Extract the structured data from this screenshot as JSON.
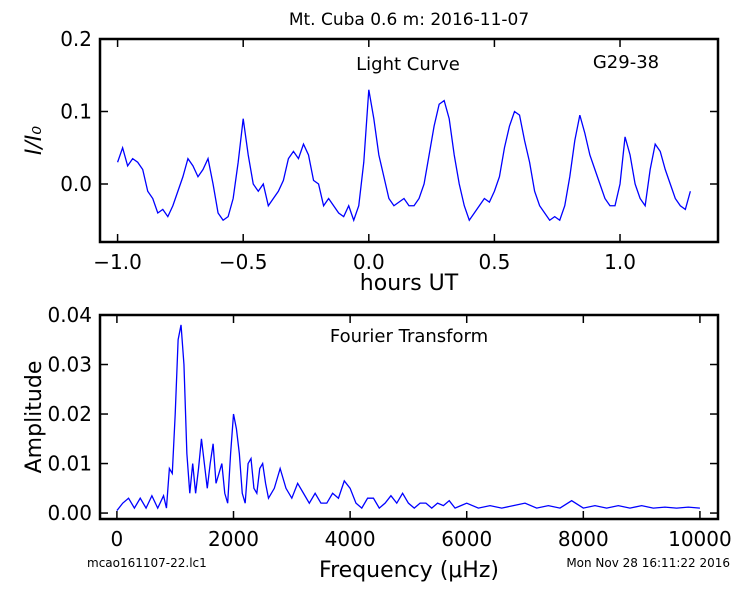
{
  "title": "Mt. Cuba 0.6 m:  2016-11-07",
  "footer_left": "mcao161107-22.lc1",
  "footer_right": "Mon Nov 28 16:11:22 2016",
  "chart_data": [
    {
      "type": "line",
      "annotations": [
        "Light Curve",
        "G29-38"
      ],
      "xlabel": "hours UT",
      "ylabel": "I/I₀",
      "color": "#0000ff",
      "xlim": [
        -1.07,
        1.39
      ],
      "ylim": [
        -0.08,
        0.2
      ],
      "xticks": [
        {
          "value": -1,
          "label": "−1.0"
        },
        {
          "value": -0.5,
          "label": "−0.5"
        },
        {
          "value": 0,
          "label": "0.0"
        },
        0.5,
        {
          "value": 1,
          "label": "1.0"
        }
      ],
      "yticks": [
        {
          "value": 0,
          "label": "0.0"
        },
        0.1,
        0.2
      ],
      "x": [
        -1.0,
        -0.98,
        -0.96,
        -0.94,
        -0.92,
        -0.9,
        -0.88,
        -0.86,
        -0.84,
        -0.82,
        -0.8,
        -0.78,
        -0.76,
        -0.74,
        -0.72,
        -0.7,
        -0.68,
        -0.66,
        -0.64,
        -0.62,
        -0.6,
        -0.58,
        -0.56,
        -0.54,
        -0.52,
        -0.5,
        -0.48,
        -0.46,
        -0.44,
        -0.42,
        -0.4,
        -0.38,
        -0.36,
        -0.34,
        -0.32,
        -0.3,
        -0.28,
        -0.26,
        -0.24,
        -0.22,
        -0.2,
        -0.18,
        -0.16,
        -0.14,
        -0.12,
        -0.1,
        -0.08,
        -0.06,
        -0.04,
        -0.02,
        0.0,
        0.02,
        0.04,
        0.06,
        0.08,
        0.1,
        0.12,
        0.14,
        0.16,
        0.18,
        0.2,
        0.22,
        0.24,
        0.26,
        0.28,
        0.3,
        0.32,
        0.34,
        0.36,
        0.38,
        0.4,
        0.42,
        0.44,
        0.46,
        0.48,
        0.5,
        0.52,
        0.54,
        0.56,
        0.58,
        0.6,
        0.62,
        0.64,
        0.66,
        0.68,
        0.7,
        0.72,
        0.74,
        0.76,
        0.78,
        0.8,
        0.82,
        0.84,
        0.86,
        0.88,
        0.9,
        0.92,
        0.94,
        0.96,
        0.98,
        1.0,
        1.02,
        1.04,
        1.06,
        1.08,
        1.1,
        1.12,
        1.14,
        1.16,
        1.18,
        1.2,
        1.22,
        1.24,
        1.26,
        1.28
      ],
      "values": [
        0.03,
        0.05,
        0.025,
        0.035,
        0.03,
        0.02,
        -0.01,
        -0.02,
        -0.04,
        -0.035,
        -0.045,
        -0.03,
        -0.01,
        0.01,
        0.035,
        0.025,
        0.01,
        0.02,
        0.035,
        0.0,
        -0.04,
        -0.05,
        -0.045,
        -0.02,
        0.03,
        0.09,
        0.04,
        0.0,
        -0.01,
        0.0,
        -0.03,
        -0.02,
        -0.01,
        0.005,
        0.035,
        0.045,
        0.035,
        0.055,
        0.04,
        0.005,
        0.0,
        -0.03,
        -0.02,
        -0.03,
        -0.04,
        -0.045,
        -0.03,
        -0.05,
        -0.03,
        0.03,
        0.13,
        0.09,
        0.04,
        0.01,
        -0.02,
        -0.03,
        -0.025,
        -0.02,
        -0.03,
        -0.03,
        -0.02,
        0.0,
        0.04,
        0.08,
        0.11,
        0.115,
        0.09,
        0.04,
        0.0,
        -0.03,
        -0.05,
        -0.04,
        -0.03,
        -0.02,
        -0.025,
        -0.01,
        0.01,
        0.05,
        0.08,
        0.1,
        0.095,
        0.06,
        0.03,
        -0.01,
        -0.03,
        -0.04,
        -0.05,
        -0.045,
        -0.05,
        -0.03,
        0.01,
        0.06,
        0.095,
        0.07,
        0.04,
        0.02,
        0.0,
        -0.02,
        -0.03,
        -0.03,
        0.0,
        0.065,
        0.04,
        0.0,
        -0.02,
        -0.03,
        0.02,
        0.055,
        0.045,
        0.02,
        0.0,
        -0.02,
        -0.03,
        -0.035,
        -0.01
      ]
    },
    {
      "type": "line",
      "annotations": [
        "Fourier Transform"
      ],
      "xlabel": "Frequency (μHz)",
      "ylabel": "Amplitude",
      "color": "#0000ff",
      "xlim": [
        -290,
        10310
      ],
      "ylim": [
        -0.0012,
        0.04
      ],
      "xticks": [
        0,
        2000,
        4000,
        6000,
        8000,
        10000
      ],
      "yticks": [
        {
          "value": 0,
          "label": "0.00"
        },
        {
          "value": 0.01,
          "label": "0.01"
        },
        {
          "value": 0.02,
          "label": "0.02"
        },
        {
          "value": 0.03,
          "label": "0.03"
        },
        {
          "value": 0.04,
          "label": "0.04"
        }
      ],
      "x": [
        0,
        100,
        200,
        300,
        400,
        500,
        600,
        700,
        800,
        850,
        900,
        950,
        1000,
        1050,
        1100,
        1150,
        1200,
        1250,
        1300,
        1350,
        1400,
        1450,
        1500,
        1550,
        1600,
        1650,
        1700,
        1750,
        1800,
        1850,
        1900,
        1950,
        2000,
        2050,
        2100,
        2150,
        2200,
        2250,
        2300,
        2350,
        2400,
        2450,
        2500,
        2550,
        2600,
        2700,
        2800,
        2900,
        3000,
        3100,
        3200,
        3300,
        3400,
        3500,
        3600,
        3700,
        3800,
        3900,
        4000,
        4100,
        4200,
        4300,
        4400,
        4500,
        4600,
        4700,
        4800,
        4900,
        5000,
        5100,
        5200,
        5300,
        5400,
        5500,
        5600,
        5700,
        5800,
        5900,
        6000,
        6200,
        6400,
        6600,
        6800,
        7000,
        7200,
        7400,
        7600,
        7800,
        8000,
        8200,
        8400,
        8600,
        8800,
        9000,
        9200,
        9400,
        9600,
        9800,
        10000
      ],
      "values": [
        0.0005,
        0.002,
        0.003,
        0.001,
        0.003,
        0.001,
        0.0035,
        0.001,
        0.0035,
        0.001,
        0.009,
        0.008,
        0.02,
        0.035,
        0.038,
        0.03,
        0.012,
        0.004,
        0.01,
        0.004,
        0.009,
        0.015,
        0.01,
        0.005,
        0.01,
        0.014,
        0.006,
        0.008,
        0.01,
        0.004,
        0.002,
        0.012,
        0.02,
        0.017,
        0.012,
        0.004,
        0.002,
        0.01,
        0.011,
        0.005,
        0.004,
        0.009,
        0.01,
        0.006,
        0.003,
        0.005,
        0.009,
        0.005,
        0.003,
        0.006,
        0.004,
        0.002,
        0.004,
        0.002,
        0.002,
        0.004,
        0.003,
        0.0065,
        0.005,
        0.002,
        0.001,
        0.003,
        0.003,
        0.001,
        0.002,
        0.0035,
        0.002,
        0.004,
        0.002,
        0.001,
        0.002,
        0.002,
        0.001,
        0.002,
        0.0015,
        0.0025,
        0.001,
        0.0015,
        0.002,
        0.001,
        0.0015,
        0.001,
        0.0015,
        0.002,
        0.001,
        0.0015,
        0.001,
        0.0025,
        0.001,
        0.0015,
        0.001,
        0.0015,
        0.001,
        0.0015,
        0.001,
        0.0012,
        0.001,
        0.0012,
        0.001
      ]
    }
  ]
}
